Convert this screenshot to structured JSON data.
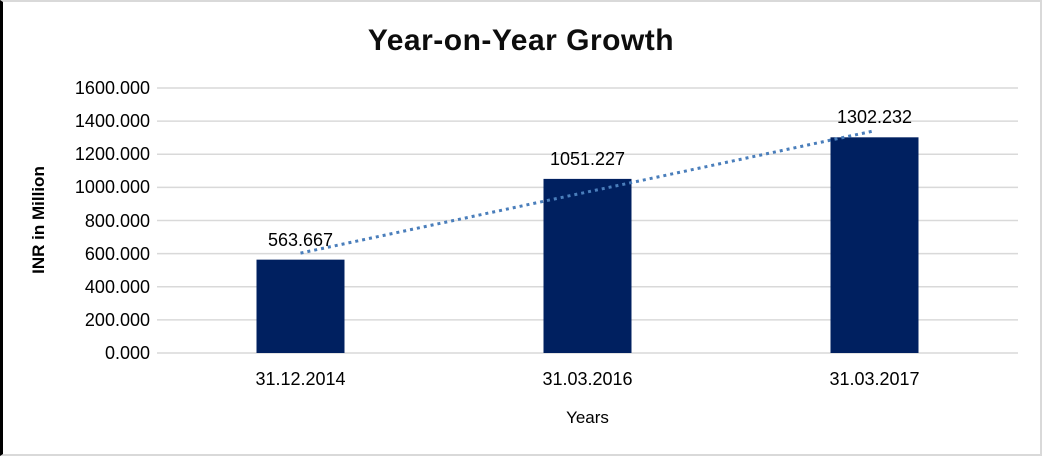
{
  "chart_data": {
    "type": "bar",
    "title": "Year-on-Year Growth",
    "categories": [
      "31.12.2014",
      "31.03.2016",
      "31.03.2017"
    ],
    "values": [
      563.667,
      1051.227,
      1302.232
    ],
    "data_labels": [
      "563.667",
      "1051.227",
      "1302.232"
    ],
    "xlabel": "Years",
    "ylabel": "INR in Million",
    "ylim": [
      0,
      1600
    ],
    "ytick_step": 200,
    "ytick_labels": [
      "0.000",
      "200.000",
      "400.000",
      "600.000",
      "800.000",
      "1000.000",
      "1200.000",
      "1400.000",
      "1600.000"
    ],
    "grid": true,
    "legend": "none",
    "trendline": {
      "type": "linear",
      "style": "dotted",
      "color": "#4A7EBB"
    },
    "colors": {
      "bar": "#002060",
      "gridline": "#D9D9D9",
      "text": "#000000",
      "frame_border": "#D9D9D9",
      "frame_border_left": "#000000"
    }
  }
}
